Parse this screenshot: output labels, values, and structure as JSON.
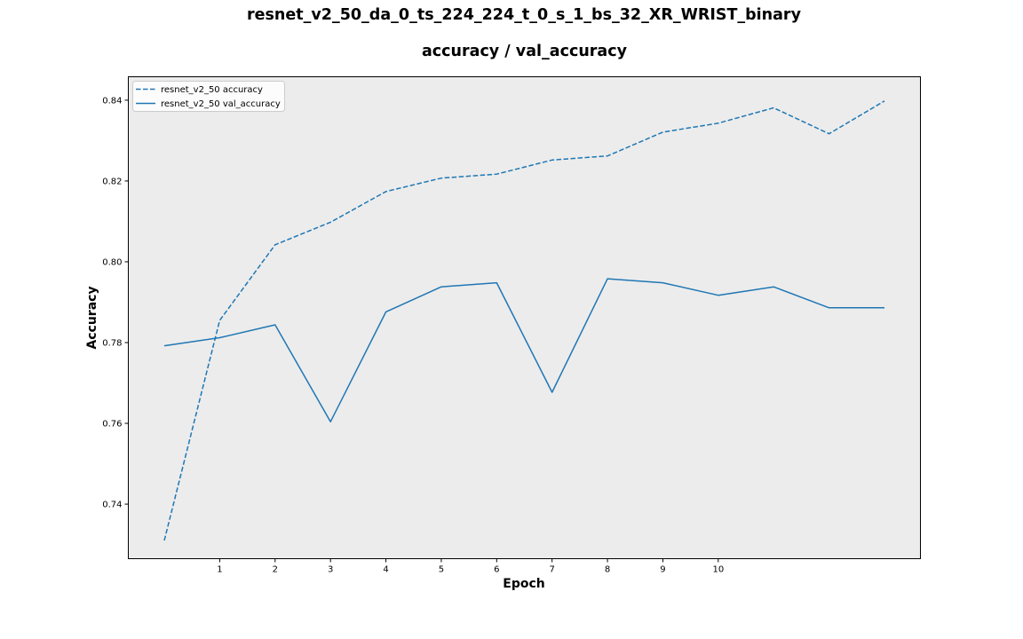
{
  "chart_data": {
    "type": "line",
    "title": "resnet_v2_50_da_0_ts_224_224_t_0_s_1_bs_32_XR_WRIST_binary",
    "subtitle": "accuracy / val_accuracy",
    "xlabel": "Epoch",
    "ylabel": "Accuracy",
    "x": [
      0,
      1,
      2,
      3,
      4,
      5,
      6,
      7,
      8,
      9,
      10,
      11,
      12,
      13
    ],
    "xticks": [
      1,
      2,
      3,
      4,
      5,
      6,
      7,
      8,
      9,
      10
    ],
    "xticklabels": [
      "1",
      "2",
      "3",
      "4",
      "5",
      "6",
      "7",
      "8",
      "9",
      "10"
    ],
    "yticks": [
      0.74,
      0.76,
      0.78,
      0.8,
      0.82,
      0.84
    ],
    "yticklabels": [
      "0.74",
      "0.76",
      "0.78",
      "0.80",
      "0.82",
      "0.84"
    ],
    "xlim": [
      -0.65,
      13.65
    ],
    "ylim": [
      0.7265,
      0.8458
    ],
    "grid": false,
    "legend_position": "top-left",
    "background": "#ececec",
    "series": [
      {
        "name": "resnet_v2_50 accuracy",
        "style": "dashed",
        "color": "#1f77b4",
        "values": [
          0.731,
          0.7855,
          0.8042,
          0.8098,
          0.8174,
          0.8207,
          0.8217,
          0.8252,
          0.8262,
          0.8321,
          0.8343,
          0.8381,
          0.8317,
          0.8398
        ]
      },
      {
        "name": "resnet_v2_50 val_accuracy",
        "style": "solid",
        "color": "#1f77b4",
        "values": [
          0.7792,
          0.7812,
          0.7844,
          0.7604,
          0.7876,
          0.7938,
          0.7948,
          0.7677,
          0.7958,
          0.7948,
          0.7917,
          0.7938,
          0.7886,
          0.7886
        ]
      }
    ]
  }
}
